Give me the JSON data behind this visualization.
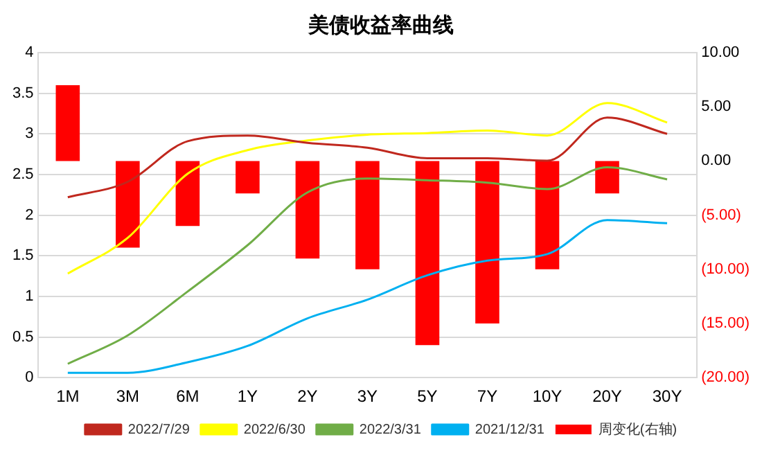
{
  "chart_data": {
    "type": "line",
    "title": "美债收益率曲线",
    "categories": [
      "1M",
      "3M",
      "6M",
      "1Y",
      "2Y",
      "3Y",
      "5Y",
      "7Y",
      "10Y",
      "20Y",
      "30Y"
    ],
    "series": [
      {
        "name": "周变化(右轴)",
        "type": "bar",
        "axis": "y2",
        "color": "#ff0000",
        "values": [
          7.0,
          -8.0,
          -6.0,
          -3.0,
          -9.0,
          -10.0,
          -17.0,
          -15.0,
          -10.0,
          -3.0,
          0
        ]
      },
      {
        "name": "2022/7/29",
        "color": "#c0281e",
        "values": [
          2.22,
          2.41,
          2.91,
          2.98,
          2.89,
          2.83,
          2.7,
          2.7,
          2.67,
          3.2,
          3.0
        ]
      },
      {
        "name": "2022/6/30",
        "color": "#ffff00",
        "values": [
          1.28,
          1.72,
          2.51,
          2.8,
          2.92,
          2.99,
          3.01,
          3.04,
          2.98,
          3.38,
          3.14
        ]
      },
      {
        "name": "2022/3/31",
        "color": "#70ad47",
        "values": [
          0.17,
          0.52,
          1.06,
          1.63,
          2.28,
          2.45,
          2.43,
          2.4,
          2.32,
          2.59,
          2.44
        ]
      },
      {
        "name": "2021/12/31",
        "color": "#00b0f0",
        "values": [
          0.06,
          0.06,
          0.19,
          0.39,
          0.73,
          0.96,
          1.26,
          1.44,
          1.52,
          1.94,
          1.9
        ]
      }
    ],
    "ylim": [
      0,
      4
    ],
    "yticks": [
      0,
      0.5,
      1,
      1.5,
      2,
      2.5,
      3,
      3.5,
      4
    ],
    "y2lim": [
      -20,
      10
    ],
    "y2ticks": [
      {
        "value": -20,
        "label": "(20.00)"
      },
      {
        "value": -15,
        "label": "(15.00)"
      },
      {
        "value": -10,
        "label": "(10.00)"
      },
      {
        "value": -5,
        "label": "(5.00)"
      },
      {
        "value": 0,
        "label": "0.00"
      },
      {
        "value": 5,
        "label": "5.00"
      },
      {
        "value": 10,
        "label": "10.00"
      }
    ],
    "grid": "y",
    "legend": "bottom",
    "marker": "none",
    "line_style": "solid"
  }
}
